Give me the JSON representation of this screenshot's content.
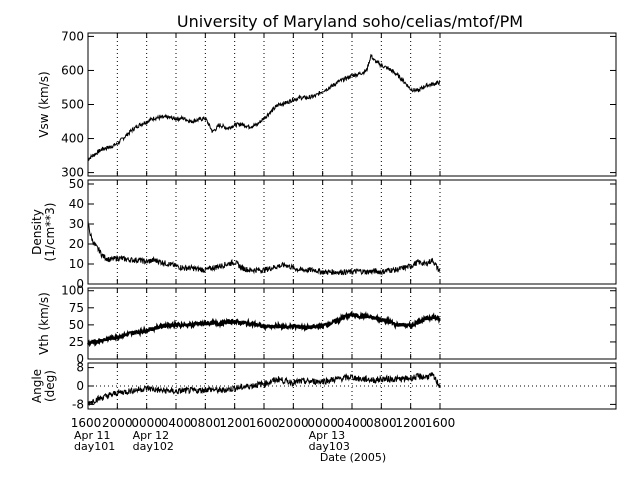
{
  "chart_data": {
    "type": "line",
    "title": "University of Maryland  soho/celias/mtof/PM",
    "xlabel": "Date (2005)",
    "x_range_hours": [
      0,
      72
    ],
    "x_ticks": [
      {
        "h": 0,
        "label": "1600",
        "sub": [
          "Apr 11",
          "day101"
        ]
      },
      {
        "h": 4,
        "label": "2000"
      },
      {
        "h": 8,
        "label": "0000",
        "sub": [
          "Apr 12",
          "day102"
        ]
      },
      {
        "h": 12,
        "label": "0400"
      },
      {
        "h": 16,
        "label": "0800"
      },
      {
        "h": 20,
        "label": "1200"
      },
      {
        "h": 24,
        "label": "1600"
      },
      {
        "h": 28,
        "label": "2000"
      },
      {
        "h": 32,
        "label": "0000",
        "sub": [
          "Apr 13",
          "day103"
        ]
      },
      {
        "h": 36,
        "label": "0400"
      },
      {
        "h": 40,
        "label": "0800"
      },
      {
        "h": 44,
        "label": "1200"
      },
      {
        "h": 48,
        "label": "1600"
      }
    ],
    "panels": [
      {
        "name": "vsw",
        "ylabel": [
          "Vsw (km/s)"
        ],
        "ylim": [
          290,
          710
        ],
        "yticks": [
          300,
          400,
          500,
          600,
          700
        ],
        "zero_line": false,
        "line_width": 1,
        "noise": 6,
        "points": [
          [
            0,
            340
          ],
          [
            1,
            355
          ],
          [
            2,
            370
          ],
          [
            3,
            375
          ],
          [
            4,
            385
          ],
          [
            5,
            405
          ],
          [
            6,
            425
          ],
          [
            7,
            440
          ],
          [
            8,
            450
          ],
          [
            9,
            460
          ],
          [
            10,
            462
          ],
          [
            11,
            462
          ],
          [
            12,
            458
          ],
          [
            13,
            460
          ],
          [
            14,
            450
          ],
          [
            15,
            455
          ],
          [
            16,
            460
          ],
          [
            17,
            420
          ],
          [
            18,
            440
          ],
          [
            19,
            430
          ],
          [
            20,
            440
          ],
          [
            21,
            442
          ],
          [
            22,
            435
          ],
          [
            23,
            440
          ],
          [
            24,
            460
          ],
          [
            25,
            480
          ],
          [
            26,
            500
          ],
          [
            27,
            505
          ],
          [
            28,
            515
          ],
          [
            29,
            520
          ],
          [
            30,
            520
          ],
          [
            31,
            525
          ],
          [
            32,
            540
          ],
          [
            33,
            550
          ],
          [
            34,
            565
          ],
          [
            35,
            575
          ],
          [
            36,
            585
          ],
          [
            37,
            590
          ],
          [
            38,
            600
          ],
          [
            38.6,
            645
          ],
          [
            39,
            630
          ],
          [
            40,
            615
          ],
          [
            41,
            605
          ],
          [
            42,
            590
          ],
          [
            43,
            570
          ],
          [
            44,
            545
          ],
          [
            45,
            540
          ],
          [
            46,
            555
          ],
          [
            47,
            560
          ],
          [
            48,
            565
          ]
        ]
      },
      {
        "name": "density",
        "ylabel": [
          "Density",
          "(1/cm**3)"
        ],
        "ylim": [
          0,
          52
        ],
        "yticks": [
          0,
          10,
          20,
          30,
          40,
          50
        ],
        "zero_line": false,
        "line_width": 1,
        "noise": 1.4,
        "points": [
          [
            0,
            31
          ],
          [
            0.3,
            25
          ],
          [
            0.6,
            22
          ],
          [
            1,
            19
          ],
          [
            1.5,
            17
          ],
          [
            2,
            14
          ],
          [
            2.5,
            13
          ],
          [
            3,
            12
          ],
          [
            4,
            13
          ],
          [
            5,
            12.5
          ],
          [
            6,
            12
          ],
          [
            7,
            12
          ],
          [
            8,
            11
          ],
          [
            9,
            12
          ],
          [
            10,
            11
          ],
          [
            11,
            10
          ],
          [
            12,
            9
          ],
          [
            13,
            8
          ],
          [
            14,
            8
          ],
          [
            15,
            7.5
          ],
          [
            16,
            7
          ],
          [
            17,
            8
          ],
          [
            18,
            9
          ],
          [
            19,
            10
          ],
          [
            20,
            11
          ],
          [
            21,
            8
          ],
          [
            22,
            7
          ],
          [
            23,
            7
          ],
          [
            24,
            7
          ],
          [
            25,
            8
          ],
          [
            26,
            9
          ],
          [
            27,
            9.5
          ],
          [
            28,
            8
          ],
          [
            29,
            7
          ],
          [
            30,
            7
          ],
          [
            31,
            7
          ],
          [
            32,
            6
          ],
          [
            33,
            6
          ],
          [
            34,
            6
          ],
          [
            35,
            6
          ],
          [
            36,
            6
          ],
          [
            37,
            6.5
          ],
          [
            38,
            6
          ],
          [
            39,
            6.5
          ],
          [
            40,
            6
          ],
          [
            41,
            7
          ],
          [
            42,
            7
          ],
          [
            43,
            8
          ],
          [
            44,
            9
          ],
          [
            45,
            11
          ],
          [
            46,
            10
          ],
          [
            47,
            12
          ],
          [
            48,
            6
          ]
        ]
      },
      {
        "name": "vth",
        "ylabel": [
          "Vth (km/s)"
        ],
        "ylim": [
          0,
          104
        ],
        "yticks": [
          0,
          25,
          50,
          75,
          100
        ],
        "zero_line": false,
        "line_width": 2,
        "noise": 3,
        "points": [
          [
            0,
            22
          ],
          [
            1,
            25
          ],
          [
            2,
            28
          ],
          [
            3,
            30
          ],
          [
            4,
            33
          ],
          [
            5,
            35
          ],
          [
            6,
            38
          ],
          [
            7,
            40
          ],
          [
            8,
            42
          ],
          [
            9,
            45
          ],
          [
            10,
            48
          ],
          [
            11,
            50
          ],
          [
            12,
            50
          ],
          [
            13,
            50
          ],
          [
            14,
            50
          ],
          [
            15,
            51
          ],
          [
            16,
            52
          ],
          [
            17,
            53
          ],
          [
            18,
            52
          ],
          [
            19,
            54
          ],
          [
            20,
            55
          ],
          [
            21,
            53
          ],
          [
            22,
            52
          ],
          [
            23,
            50
          ],
          [
            24,
            48
          ],
          [
            25,
            47
          ],
          [
            26,
            48
          ],
          [
            27,
            47
          ],
          [
            28,
            48
          ],
          [
            29,
            47
          ],
          [
            30,
            46
          ],
          [
            31,
            47
          ],
          [
            32,
            49
          ],
          [
            33,
            52
          ],
          [
            34,
            56
          ],
          [
            35,
            62
          ],
          [
            36,
            65
          ],
          [
            37,
            63
          ],
          [
            38,
            62
          ],
          [
            39,
            60
          ],
          [
            40,
            58
          ],
          [
            41,
            55
          ],
          [
            42,
            50
          ],
          [
            43,
            50
          ],
          [
            44,
            48
          ],
          [
            45,
            55
          ],
          [
            46,
            58
          ],
          [
            47,
            62
          ],
          [
            48,
            58
          ]
        ]
      },
      {
        "name": "angle",
        "ylabel": [
          "Angle",
          "(deg)"
        ],
        "ylim": [
          -10,
          10
        ],
        "yticks": [
          -8,
          0,
          8
        ],
        "zero_line": true,
        "line_width": 1,
        "noise": 1.4,
        "points": [
          [
            0,
            -7.5
          ],
          [
            1,
            -6
          ],
          [
            2,
            -5
          ],
          [
            3,
            -4
          ],
          [
            4,
            -3
          ],
          [
            5,
            -2.5
          ],
          [
            6,
            -2
          ],
          [
            7,
            -1.5
          ],
          [
            8,
            -1
          ],
          [
            9,
            -1.5
          ],
          [
            10,
            -2
          ],
          [
            11,
            -2
          ],
          [
            12,
            -2.5
          ],
          [
            13,
            -2
          ],
          [
            14,
            -2
          ],
          [
            15,
            -2
          ],
          [
            16,
            -1.5
          ],
          [
            17,
            -1.5
          ],
          [
            18,
            -2
          ],
          [
            19,
            -1.5
          ],
          [
            20,
            -1
          ],
          [
            21,
            -0.5
          ],
          [
            22,
            0
          ],
          [
            23,
            0.5
          ],
          [
            24,
            1
          ],
          [
            25,
            2
          ],
          [
            26,
            3
          ],
          [
            27,
            2
          ],
          [
            28,
            1.5
          ],
          [
            29,
            2
          ],
          [
            30,
            2
          ],
          [
            31,
            2
          ],
          [
            32,
            2
          ],
          [
            33,
            2.5
          ],
          [
            34,
            3
          ],
          [
            35,
            3.5
          ],
          [
            36,
            4
          ],
          [
            37,
            3
          ],
          [
            38,
            3
          ],
          [
            39,
            2.5
          ],
          [
            40,
            3
          ],
          [
            41,
            3
          ],
          [
            42,
            3
          ],
          [
            43,
            3
          ],
          [
            44,
            3.5
          ],
          [
            45,
            4
          ],
          [
            46,
            4
          ],
          [
            47,
            4.5
          ],
          [
            48,
            0
          ]
        ]
      }
    ]
  }
}
